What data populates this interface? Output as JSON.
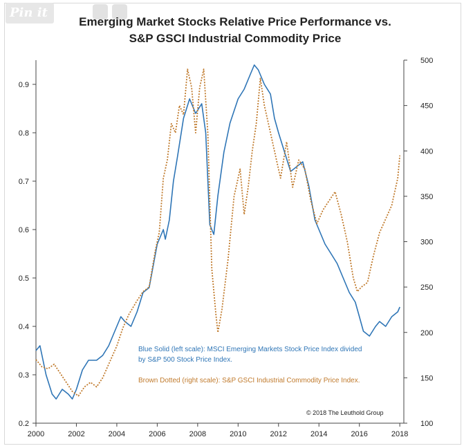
{
  "watermark": {
    "label": "Pin it"
  },
  "chart_data": {
    "type": "line",
    "title": "Emerging Market Stocks Relative Price Performance vs.",
    "subtitle": "S&P GSCI Industrial Commodity Price",
    "x_ticks": [
      "2000",
      "2002",
      "2004",
      "2006",
      "2008",
      "2010",
      "2012",
      "2014",
      "2016",
      "2018"
    ],
    "xlim": [
      2000,
      2018.2
    ],
    "y_left_ticks": [
      "0.2",
      "0.3",
      "0.4",
      "0.5",
      "0.6",
      "0.7",
      "0.8",
      "0.9"
    ],
    "ylim_left": [
      0.2,
      0.95
    ],
    "y_right_ticks": [
      "100",
      "150",
      "200",
      "250",
      "300",
      "350",
      "400",
      "450",
      "500"
    ],
    "ylim_right": [
      100,
      500
    ],
    "grid": false,
    "series": [
      {
        "axis": "left",
        "color": "#2e75b6",
        "style": "solid",
        "x": [
          2000.0,
          2000.2,
          2000.5,
          2000.8,
          2001.0,
          2001.3,
          2001.6,
          2001.8,
          2002.0,
          2002.3,
          2002.6,
          2003.0,
          2003.3,
          2003.6,
          2004.0,
          2004.2,
          2004.4,
          2004.7,
          2005.0,
          2005.3,
          2005.6,
          2006.0,
          2006.3,
          2006.4,
          2006.6,
          2006.8,
          2007.0,
          2007.3,
          2007.6,
          2007.9,
          2008.2,
          2008.4,
          2008.6,
          2008.8,
          2009.0,
          2009.3,
          2009.6,
          2010.0,
          2010.3,
          2010.6,
          2010.8,
          2011.0,
          2011.3,
          2011.6,
          2011.8,
          2012.0,
          2012.3,
          2012.6,
          2012.9,
          2013.2,
          2013.5,
          2013.8,
          2014.0,
          2014.3,
          2014.6,
          2014.9,
          2015.2,
          2015.5,
          2015.8,
          2016.0,
          2016.2,
          2016.5,
          2016.8,
          2017.0,
          2017.3,
          2017.6,
          2017.9,
          2018.0
        ],
        "y": [
          0.35,
          0.36,
          0.3,
          0.26,
          0.25,
          0.27,
          0.26,
          0.25,
          0.27,
          0.31,
          0.33,
          0.33,
          0.34,
          0.36,
          0.4,
          0.42,
          0.41,
          0.4,
          0.43,
          0.47,
          0.48,
          0.57,
          0.6,
          0.58,
          0.62,
          0.7,
          0.75,
          0.83,
          0.87,
          0.84,
          0.86,
          0.8,
          0.61,
          0.59,
          0.67,
          0.76,
          0.82,
          0.87,
          0.89,
          0.92,
          0.94,
          0.93,
          0.9,
          0.88,
          0.83,
          0.8,
          0.76,
          0.72,
          0.73,
          0.74,
          0.69,
          0.62,
          0.6,
          0.57,
          0.55,
          0.53,
          0.5,
          0.47,
          0.45,
          0.42,
          0.39,
          0.38,
          0.4,
          0.41,
          0.4,
          0.42,
          0.43,
          0.44
        ]
      },
      {
        "axis": "right",
        "color": "#c07a2c",
        "style": "dotted",
        "x": [
          2000.0,
          2000.3,
          2000.6,
          2000.9,
          2001.2,
          2001.5,
          2001.8,
          2002.1,
          2002.4,
          2002.7,
          2003.0,
          2003.3,
          2003.6,
          2004.0,
          2004.3,
          2004.6,
          2005.0,
          2005.3,
          2005.6,
          2005.9,
          2006.1,
          2006.3,
          2006.5,
          2006.7,
          2006.9,
          2007.1,
          2007.3,
          2007.5,
          2007.7,
          2007.9,
          2008.1,
          2008.3,
          2008.5,
          2008.7,
          2008.9,
          2009.0,
          2009.2,
          2009.5,
          2009.8,
          2010.1,
          2010.3,
          2010.5,
          2010.7,
          2010.9,
          2011.1,
          2011.3,
          2011.5,
          2011.7,
          2011.9,
          2012.1,
          2012.4,
          2012.7,
          2013.0,
          2013.3,
          2013.6,
          2013.9,
          2014.2,
          2014.5,
          2014.8,
          2015.1,
          2015.4,
          2015.7,
          2015.9,
          2016.1,
          2016.4,
          2016.7,
          2017.0,
          2017.3,
          2017.6,
          2017.9,
          2018.0
        ],
        "y": [
          170,
          162,
          160,
          165,
          155,
          145,
          135,
          130,
          140,
          145,
          140,
          150,
          165,
          185,
          205,
          220,
          235,
          245,
          250,
          290,
          310,
          370,
          390,
          430,
          420,
          450,
          440,
          490,
          470,
          420,
          470,
          490,
          420,
          270,
          220,
          200,
          225,
          280,
          350,
          380,
          330,
          360,
          400,
          430,
          480,
          450,
          430,
          410,
          390,
          370,
          410,
          360,
          390,
          380,
          345,
          320,
          335,
          345,
          355,
          330,
          300,
          260,
          245,
          250,
          255,
          285,
          310,
          325,
          340,
          370,
          395
        ]
      }
    ],
    "annotations": {
      "blue_note_1": "Blue Solid (left scale): MSCI Emerging Markets Stock Price Index divided",
      "blue_note_2": "by S&P 500 Stock Price Index.",
      "brown_note": "Brown Dotted (right scale): S&P GSCI Industrial Commodity Price Index.",
      "copyright": "© 2018 The Leuthold Group"
    }
  }
}
